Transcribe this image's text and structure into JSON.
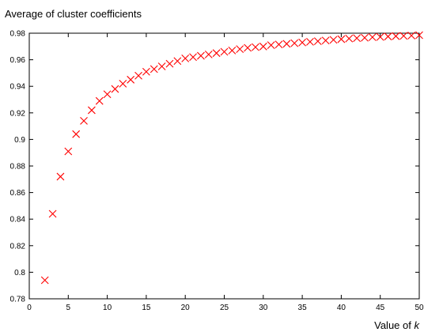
{
  "chart_data": {
    "type": "scatter",
    "ylabel": "Average of cluster coefficients",
    "xlabel": "Value of",
    "xlabel_var": "k",
    "xlim": [
      0,
      50
    ],
    "ylim": [
      0.78,
      0.98
    ],
    "xticks": [
      "0",
      "5",
      "10",
      "15",
      "20",
      "25",
      "30",
      "35",
      "40",
      "45",
      "50"
    ],
    "yticks": [
      "0.78",
      "0.8",
      "0.82",
      "0.84",
      "0.86",
      "0.88",
      "0.9",
      "0.92",
      "0.94",
      "0.96",
      "0.98"
    ],
    "grid": false,
    "marker": "x",
    "color": "#ff0000",
    "x": [
      2,
      3,
      4,
      5,
      6,
      7,
      8,
      9,
      10,
      11,
      12,
      13,
      14,
      15,
      16,
      17,
      18,
      19,
      20,
      21,
      22,
      23,
      24,
      25,
      26,
      27,
      28,
      29,
      30,
      31,
      32,
      33,
      34,
      35,
      36,
      37,
      38,
      39,
      40,
      41,
      42,
      43,
      44,
      45,
      46,
      47,
      48,
      49,
      50
    ],
    "y": [
      0.794,
      0.844,
      0.872,
      0.891,
      0.904,
      0.914,
      0.922,
      0.929,
      0.934,
      0.938,
      0.942,
      0.945,
      0.948,
      0.951,
      0.953,
      0.955,
      0.957,
      0.959,
      0.961,
      0.962,
      0.963,
      0.964,
      0.965,
      0.966,
      0.967,
      0.968,
      0.969,
      0.9695,
      0.97,
      0.971,
      0.9715,
      0.972,
      0.9725,
      0.973,
      0.9735,
      0.974,
      0.9745,
      0.975,
      0.9755,
      0.976,
      0.9763,
      0.9766,
      0.977,
      0.9772,
      0.9775,
      0.9778,
      0.978,
      0.9782,
      0.9785
    ]
  }
}
